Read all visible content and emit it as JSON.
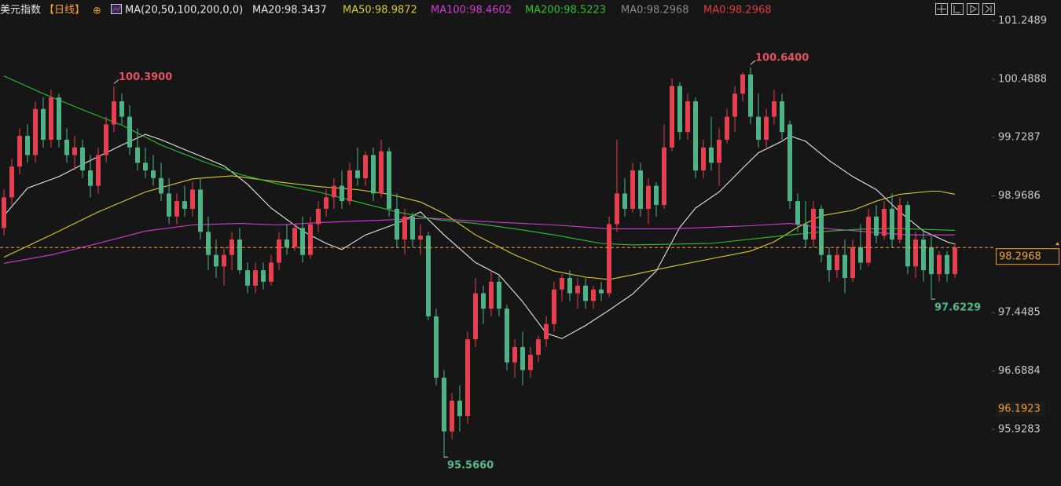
{
  "header": {
    "title": "美元指数",
    "period": "【日线】",
    "add": "⊕",
    "indicator": "MA(20,50,100,200,0,0)",
    "extra": [
      {
        "label": "MA0:98.2968",
        "color": "#8c8c8c"
      },
      {
        "label": "MA0:98.2968",
        "color": "#e23b3b"
      }
    ]
  },
  "chart_data": {
    "type": "candlestick",
    "up_color": "#e5404f",
    "down_color": "#4fb387",
    "ylim": [
      95.19,
      101.52
    ],
    "xlim": [
      -0.5,
      122
    ],
    "yticks": [
      95.9283,
      96.6884,
      97.4485,
      98.9686,
      99.7287,
      100.4888,
      101.2489
    ],
    "price_line": 98.2968,
    "marker": 96.1923,
    "marker_color": "#f0a030",
    "open": [
      98.55,
      98.95,
      99.35,
      99.75,
      99.5,
      100.1,
      99.7,
      100.25,
      99.7,
      99.5,
      99.6,
      99.3,
      99.1,
      99.5,
      99.9,
      100.2,
      100.0,
      99.6,
      99.4,
      99.3,
      99.2,
      99.0,
      98.7,
      98.9,
      98.8,
      99.05,
      98.5,
      98.2,
      98.05,
      98.2,
      98.4,
      98.0,
      97.8,
      98.0,
      97.85,
      98.1,
      98.4,
      98.3,
      98.55,
      98.2,
      98.6,
      98.8,
      98.95,
      99.1,
      98.9,
      99.3,
      99.2,
      99.5,
      99.0,
      99.55,
      98.8,
      98.4,
      98.7,
      98.4,
      98.45,
      97.4,
      96.6,
      95.9,
      96.3,
      96.1,
      97.1,
      97.7,
      97.5,
      97.85,
      97.5,
      96.8,
      97.0,
      96.7,
      96.9,
      97.1,
      97.3,
      97.75,
      97.9,
      97.7,
      97.8,
      97.6,
      97.75,
      97.7,
      98.6,
      99.0,
      98.8,
      99.3,
      98.8,
      99.1,
      98.85,
      99.6,
      100.4,
      99.8,
      100.2,
      99.3,
      99.6,
      99.4,
      99.7,
      100.0,
      100.3,
      100.55,
      100.0,
      99.7,
      100.0,
      100.2,
      99.9,
      98.9,
      98.6,
      98.4,
      98.8,
      98.2,
      98.0,
      98.2,
      97.9,
      98.3,
      98.1,
      98.7,
      98.45,
      98.8,
      98.4,
      98.85,
      98.05,
      98.4,
      98.3,
      97.95,
      98.2,
      97.95
    ],
    "high": [
      99.05,
      99.45,
      99.85,
      99.9,
      100.2,
      100.25,
      100.35,
      100.3,
      99.85,
      99.75,
      99.7,
      99.5,
      99.6,
      100.0,
      100.39,
      100.3,
      100.15,
      99.85,
      99.6,
      99.5,
      99.4,
      99.2,
      99.0,
      99.1,
      99.15,
      99.2,
      98.7,
      98.4,
      98.3,
      98.5,
      98.55,
      98.1,
      98.1,
      98.1,
      98.2,
      98.5,
      98.6,
      98.6,
      98.7,
      98.7,
      98.9,
      99.05,
      99.2,
      99.3,
      99.4,
      99.6,
      99.55,
      99.6,
      99.7,
      99.6,
      99.0,
      98.8,
      98.75,
      98.6,
      98.5,
      97.5,
      96.7,
      96.4,
      96.5,
      97.2,
      97.9,
      97.8,
      98.0,
      97.95,
      97.55,
      97.1,
      97.2,
      97.0,
      97.15,
      97.4,
      97.85,
      97.95,
      98.0,
      97.9,
      97.9,
      97.8,
      97.85,
      98.7,
      99.7,
      99.2,
      99.4,
      99.4,
      99.2,
      99.15,
      99.9,
      100.5,
      100.45,
      100.3,
      100.25,
      99.7,
      100.0,
      99.85,
      100.1,
      100.4,
      100.58,
      100.64,
      100.3,
      100.1,
      100.35,
      100.3,
      99.95,
      99.0,
      98.9,
      98.9,
      98.85,
      98.3,
      98.3,
      98.4,
      98.4,
      98.6,
      98.8,
      98.85,
      98.9,
      99.0,
      98.95,
      98.9,
      98.5,
      98.5,
      98.45,
      98.25,
      98.25,
      98.35
    ],
    "low": [
      98.45,
      98.85,
      99.25,
      99.4,
      99.4,
      99.6,
      99.6,
      99.6,
      99.4,
      99.3,
      99.2,
      98.95,
      99.0,
      99.4,
      99.8,
      99.9,
      99.5,
      99.3,
      99.2,
      99.1,
      98.9,
      98.6,
      98.6,
      98.7,
      98.7,
      98.4,
      98.0,
      97.9,
      97.8,
      98.0,
      97.95,
      97.7,
      97.7,
      97.75,
      97.8,
      98.0,
      98.2,
      98.25,
      98.1,
      98.15,
      98.5,
      98.7,
      98.8,
      98.8,
      98.85,
      99.1,
      99.1,
      98.9,
      98.95,
      98.7,
      98.3,
      98.2,
      98.3,
      98.2,
      97.35,
      96.5,
      95.566,
      95.8,
      95.9,
      96.0,
      97.0,
      97.3,
      97.4,
      97.4,
      96.7,
      96.6,
      96.5,
      96.6,
      96.8,
      97.0,
      97.2,
      97.6,
      97.6,
      97.5,
      97.5,
      97.5,
      97.6,
      97.65,
      98.5,
      98.7,
      98.75,
      98.7,
      98.6,
      98.7,
      98.8,
      99.55,
      99.7,
      99.7,
      99.2,
      99.2,
      99.3,
      99.1,
      99.65,
      99.8,
      100.2,
      99.9,
      99.6,
      99.6,
      99.9,
      99.7,
      98.8,
      98.5,
      98.3,
      98.3,
      98.1,
      97.85,
      97.9,
      97.7,
      97.85,
      98.0,
      98.05,
      98.35,
      98.4,
      98.3,
      98.35,
      97.95,
      97.9,
      97.85,
      97.6229,
      97.85,
      97.85,
      97.9
    ],
    "close": [
      98.95,
      99.35,
      99.75,
      99.5,
      100.1,
      99.7,
      100.25,
      99.7,
      99.5,
      99.6,
      99.3,
      99.1,
      99.5,
      99.9,
      100.2,
      100.0,
      99.6,
      99.4,
      99.3,
      99.2,
      99.0,
      98.7,
      98.9,
      98.8,
      99.05,
      98.5,
      98.2,
      98.05,
      98.2,
      98.4,
      98.0,
      97.8,
      98.0,
      97.85,
      98.1,
      98.4,
      98.3,
      98.55,
      98.2,
      98.6,
      98.8,
      98.95,
      99.1,
      98.9,
      99.3,
      99.2,
      99.5,
      99.0,
      99.55,
      98.8,
      98.4,
      98.7,
      98.4,
      98.45,
      97.4,
      96.6,
      95.9,
      96.3,
      96.1,
      97.1,
      97.7,
      97.5,
      97.85,
      97.5,
      96.8,
      97.0,
      96.7,
      96.9,
      97.1,
      97.3,
      97.75,
      97.9,
      97.7,
      97.8,
      97.6,
      97.75,
      97.7,
      98.6,
      99.0,
      98.8,
      99.3,
      98.8,
      99.1,
      98.85,
      99.6,
      100.4,
      99.8,
      100.2,
      99.3,
      99.6,
      99.4,
      99.7,
      100.0,
      100.3,
      100.55,
      100.0,
      99.7,
      100.0,
      100.2,
      99.8,
      98.9,
      98.6,
      98.4,
      98.8,
      98.2,
      98.0,
      98.2,
      97.9,
      98.3,
      98.1,
      98.7,
      98.45,
      98.8,
      98.4,
      98.85,
      98.05,
      98.4,
      98.0,
      97.95,
      98.2,
      97.95,
      98.2968
    ],
    "high_labels": [
      null,
      null,
      null,
      null,
      null,
      null,
      null,
      null,
      null,
      null,
      null,
      null,
      null,
      null,
      "100.3900",
      null,
      null,
      null,
      null,
      null,
      null,
      null,
      null,
      null,
      null,
      null,
      null,
      null,
      null,
      null,
      null,
      null,
      null,
      null,
      null,
      null,
      null,
      null,
      null,
      null,
      null,
      null,
      null,
      null,
      null,
      null,
      null,
      null,
      null,
      null,
      null,
      null,
      null,
      null,
      null,
      null,
      null,
      null,
      null,
      null,
      null,
      null,
      null,
      null,
      null,
      null,
      null,
      null,
      null,
      null,
      null,
      null,
      null,
      null,
      null,
      null,
      null,
      null,
      null,
      null,
      null,
      null,
      null,
      null,
      null,
      null,
      null,
      null,
      null,
      null,
      null,
      null,
      null,
      null,
      null,
      "100.6400",
      null,
      null,
      null,
      null,
      null,
      null,
      null,
      null,
      null,
      null,
      null,
      null,
      null,
      null,
      null,
      null,
      null,
      null,
      null,
      null,
      null,
      null,
      null,
      null,
      null,
      null
    ],
    "low_labels": [
      null,
      null,
      null,
      null,
      null,
      null,
      null,
      null,
      null,
      null,
      null,
      null,
      null,
      null,
      null,
      null,
      null,
      null,
      null,
      null,
      null,
      null,
      null,
      null,
      null,
      null,
      null,
      null,
      null,
      null,
      null,
      null,
      null,
      null,
      null,
      null,
      null,
      null,
      null,
      null,
      null,
      null,
      null,
      null,
      null,
      null,
      null,
      null,
      null,
      null,
      null,
      null,
      null,
      null,
      null,
      null,
      "95.5660",
      null,
      null,
      null,
      null,
      null,
      null,
      null,
      null,
      null,
      null,
      null,
      null,
      null,
      null,
      null,
      null,
      null,
      null,
      null,
      null,
      null,
      null,
      null,
      null,
      null,
      null,
      null,
      null,
      null,
      null,
      null,
      null,
      null,
      null,
      null,
      null,
      null,
      null,
      null,
      null,
      null,
      null,
      null,
      null,
      null,
      null,
      null,
      null,
      null,
      null,
      null,
      null,
      null,
      null,
      null,
      null,
      null,
      null,
      null,
      null,
      null,
      "97.6229",
      null,
      null,
      null
    ],
    "high_label_color": "#e0535f",
    "low_label_color": "#52b88a",
    "series": [
      {
        "name": "MA20:98.3437",
        "color": "#e6e6e6",
        "x": [
          0,
          3,
          7,
          11,
          15,
          18,
          20,
          24,
          28,
          31,
          34,
          38,
          41,
          43,
          46,
          50,
          53,
          56,
          60,
          63,
          66,
          69,
          71,
          74,
          77,
          80,
          83,
          86,
          88,
          91,
          94,
          96,
          99,
          100,
          102,
          105,
          108,
          111,
          114,
          117,
          120,
          121
        ],
        "values": [
          98.71,
          99.07,
          99.22,
          99.43,
          99.63,
          99.77,
          99.7,
          99.53,
          99.36,
          99.12,
          98.81,
          98.51,
          98.35,
          98.27,
          98.46,
          98.61,
          98.76,
          98.46,
          98.1,
          97.94,
          97.59,
          97.18,
          97.11,
          97.28,
          97.48,
          97.69,
          97.99,
          98.56,
          98.81,
          99.02,
          99.33,
          99.53,
          99.68,
          99.75,
          99.68,
          99.43,
          99.22,
          99.05,
          98.76,
          98.51,
          98.37,
          98.34
        ]
      },
      {
        "name": "MA50:98.9872",
        "color": "#d8cc2c",
        "x": [
          0,
          6,
          12,
          18,
          24,
          29,
          35,
          40,
          45,
          49,
          53,
          56,
          60,
          65,
          70,
          74,
          77,
          80,
          85,
          90,
          95,
          98,
          101,
          104,
          108,
          111,
          114,
          118,
          119,
          121
        ],
        "values": [
          98.17,
          98.46,
          98.76,
          99.02,
          99.19,
          99.23,
          99.15,
          99.09,
          99.05,
          98.99,
          98.89,
          98.74,
          98.46,
          98.2,
          97.99,
          97.91,
          97.88,
          97.94,
          98.05,
          98.15,
          98.25,
          98.37,
          98.56,
          98.71,
          98.78,
          98.9,
          98.99,
          99.03,
          99.03,
          98.99
        ]
      },
      {
        "name": "MA100:98.4602",
        "color": "#d23cd2",
        "x": [
          0,
          6,
          12,
          18,
          24,
          30,
          35,
          40,
          45,
          50,
          54,
          60,
          70,
          77,
          85,
          95,
          100,
          105,
          110,
          115,
          121
        ],
        "values": [
          98.09,
          98.2,
          98.35,
          98.51,
          98.59,
          98.61,
          98.59,
          98.62,
          98.64,
          98.66,
          98.68,
          98.64,
          98.59,
          98.54,
          98.54,
          98.58,
          98.61,
          98.54,
          98.5,
          98.46,
          98.46
        ]
      },
      {
        "name": "MA200:98.5223",
        "color": "#2cc02c",
        "x": [
          0,
          5,
          10,
          15,
          20,
          25,
          30,
          35,
          40,
          45,
          50,
          55,
          60,
          65,
          70,
          76,
          80,
          90,
          100,
          105,
          110,
          115,
          121
        ],
        "values": [
          100.53,
          100.3,
          100.09,
          99.89,
          99.63,
          99.43,
          99.25,
          99.12,
          99.02,
          98.89,
          98.76,
          98.66,
          98.61,
          98.54,
          98.46,
          98.35,
          98.33,
          98.35,
          98.46,
          98.51,
          98.54,
          98.54,
          98.52
        ]
      }
    ]
  }
}
